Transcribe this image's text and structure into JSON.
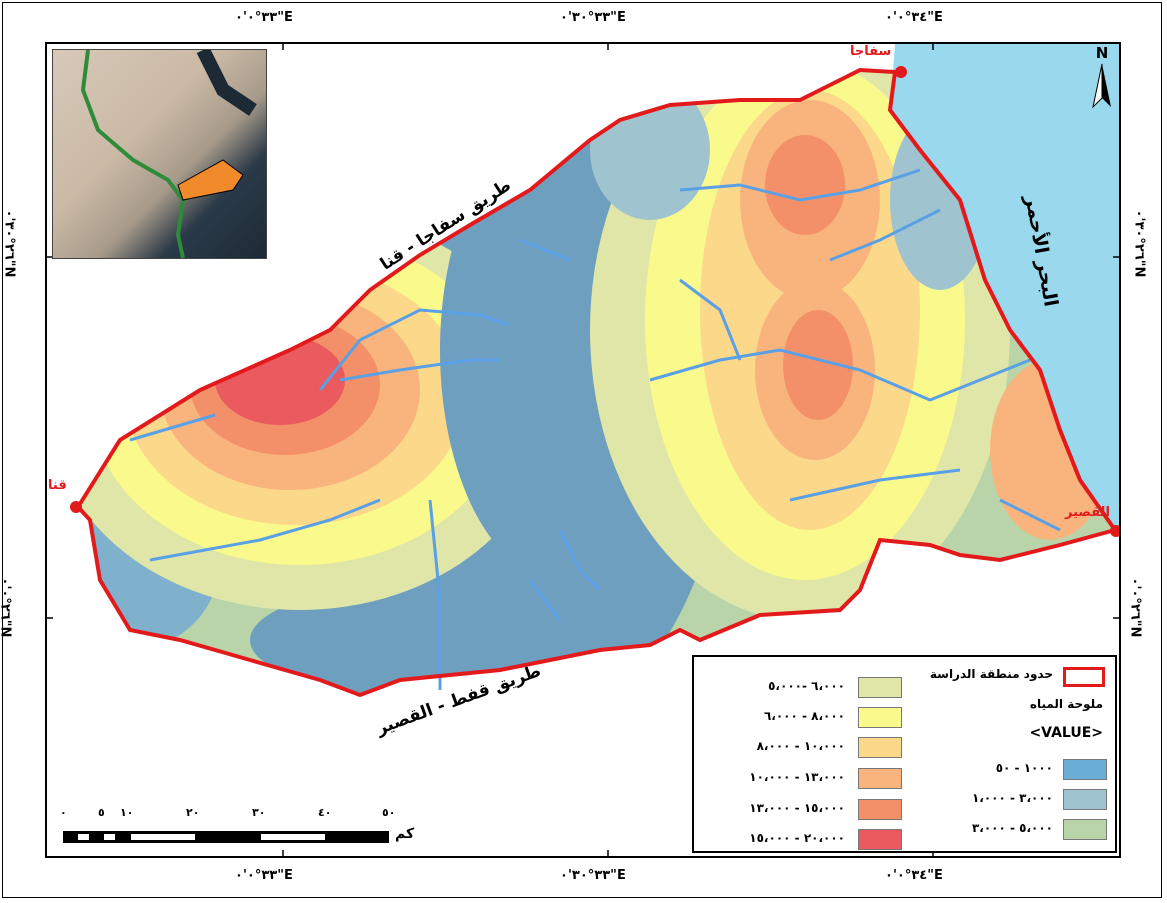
{
  "coordinates": {
    "top": [
      "٣٣°٠'٠\"E",
      "٣٣°٣٠'٠\"E",
      "٣٤°٠'٠\"E"
    ],
    "bottom": [
      "٣٣°٠'٠\"E",
      "٣٣°٣٠'٠\"E",
      "٣٤°٠'٠\"E"
    ],
    "left": [
      "٢٦°٣٠'٠\"N",
      "٢٦°٠'٠\"N"
    ],
    "right": [
      "٢٦°٣٠'٠\"N",
      "٢٦°٠'٠\"N"
    ]
  },
  "map_labels": {
    "road_north": "طريق سفاجا - قنا",
    "road_south": "طريق قفط - القصير",
    "sea": "البحر الأحمر",
    "city_safaga": "سفاجا",
    "city_qena": "قنا",
    "city_quseir": "القصير"
  },
  "north_arrow": "N",
  "legend": {
    "boundary_label": "حدود منطقة الدراسة",
    "boundary_color": "#e31a1c",
    "title": "ملوحة المياه",
    "value_header": "<VALUE>",
    "classes": [
      {
        "label": "١٠٠٠ - ٥٠",
        "color": "#6aaed6"
      },
      {
        "label": "٣،٠٠٠ - ١،٠٠٠",
        "color": "#9fc4cf"
      },
      {
        "label": "٥،٠٠٠ - ٣،٠٠٠",
        "color": "#b9d4a8"
      },
      {
        "label": "٦،٠٠٠ -٥،٠٠٠",
        "color": "#dfe6a8"
      },
      {
        "label": "٨،٠٠٠ - ٦،٠٠٠",
        "color": "#fafa8c"
      },
      {
        "label": "١٠،٠٠٠ - ٨،٠٠٠",
        "color": "#fbd88a"
      },
      {
        "label": "١٣،٠٠٠ - ١٠،٠٠٠",
        "color": "#f9b47e"
      },
      {
        "label": "١٥،٠٠٠ - ١٣،٠٠٠",
        "color": "#f39069"
      },
      {
        "label": "٢٠،٠٠٠ - ١٥،٠٠٠",
        "color": "#ea5a5f"
      }
    ]
  },
  "scale_bar": {
    "ticks": [
      "٠",
      "٥",
      "١٠",
      "٢٠",
      "٣٠",
      "٤٠",
      "٥٠"
    ],
    "unit": "كم"
  }
}
